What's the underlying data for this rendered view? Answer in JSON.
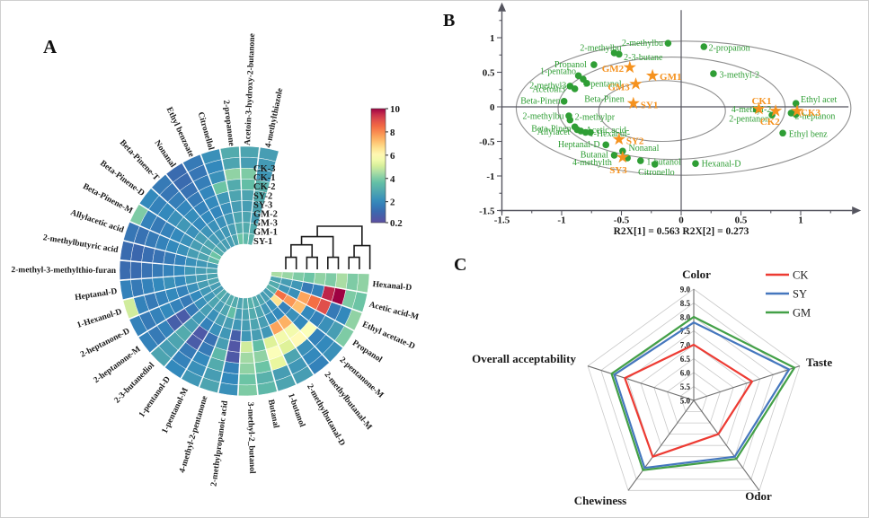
{
  "panels": {
    "a": "A",
    "b": "B",
    "c": "C"
  },
  "chart_data": [
    {
      "type": "heatmap",
      "id": "circular-volatile-heatmap",
      "rings_outer_to_inner": [
        "CK-3",
        "CK-1",
        "CK-2",
        "SY-2",
        "SY-3",
        "GM-2",
        "GM-3",
        "GM-1",
        "SY-1"
      ],
      "value_min": 0.2,
      "value_max": 10,
      "colorbar_ticks": [
        "10",
        "8",
        "6",
        "4",
        "2",
        "0.2"
      ],
      "colorbar_tick_values": [
        10,
        8,
        6,
        4,
        2,
        0.2
      ],
      "colormap_stops": [
        {
          "t": 0.0,
          "c": "#5e4fa2"
        },
        {
          "t": 0.09,
          "c": "#3b66ad"
        },
        {
          "t": 0.18,
          "c": "#3288bd"
        },
        {
          "t": 0.28,
          "c": "#52a9ae"
        },
        {
          "t": 0.36,
          "c": "#66c2a5"
        },
        {
          "t": 0.44,
          "c": "#abdda4"
        },
        {
          "t": 0.52,
          "c": "#e6f598"
        },
        {
          "t": 0.58,
          "c": "#ffffbf"
        },
        {
          "t": 0.66,
          "c": "#fee08b"
        },
        {
          "t": 0.74,
          "c": "#fdae61"
        },
        {
          "t": 0.84,
          "c": "#f46d43"
        },
        {
          "t": 0.93,
          "c": "#d53e4f"
        },
        {
          "t": 1.0,
          "c": "#9e0142"
        }
      ],
      "sectors": [
        {
          "label": "Hexanal-D",
          "values": [
            4.2,
            4.0,
            4.5,
            4.0,
            4.2,
            3.8,
            4.0,
            4.3,
            4.5
          ]
        },
        {
          "label": "Acetic acid-M",
          "values": [
            3.8,
            4.0,
            10,
            9.6,
            1.8,
            1.6,
            2.4,
            2.6,
            2.8
          ]
        },
        {
          "label": "Ethyl acetate-D",
          "values": [
            4.2,
            2.0,
            1.6,
            9.0,
            8.4,
            7.6,
            2.2,
            2.4,
            3.0
          ]
        },
        {
          "label": "Propanol",
          "values": [
            4.0,
            2.6,
            2.2,
            1.8,
            2.0,
            7.2,
            7.8,
            8.4,
            3.2
          ]
        },
        {
          "label": "2-pentanone-M",
          "values": [
            2.2,
            2.0,
            1.8,
            5.8,
            2.0,
            2.2,
            1.8,
            6.6,
            2.6
          ]
        },
        {
          "label": "2-methylbutanal-M",
          "values": [
            1.8,
            2.0,
            2.2,
            6.0,
            5.6,
            7.4,
            2.0,
            2.2,
            2.6
          ]
        },
        {
          "label": "2-methylbutanal-D",
          "values": [
            2.6,
            2.4,
            2.8,
            5.2,
            5.6,
            7.6,
            2.2,
            2.4,
            2.8
          ]
        },
        {
          "label": "1-butanol",
          "values": [
            2.8,
            2.6,
            5.4,
            5.8,
            5.2,
            2.4,
            2.6,
            2.8,
            3.0
          ]
        },
        {
          "label": "Butanal",
          "values": [
            3.4,
            3.2,
            3.8,
            4.2,
            3.6,
            2.6,
            2.8,
            3.0,
            3.2
          ]
        },
        {
          "label": "3-methyl-2_butanol",
          "values": [
            4.0,
            3.8,
            4.2,
            4.4,
            5.0,
            2.4,
            2.6,
            2.8,
            3.0
          ]
        },
        {
          "label": "2-methylpropanoic acid",
          "values": [
            2.2,
            2.0,
            1.8,
            0.6,
            0.5,
            0.8,
            2.4,
            2.6,
            2.8
          ]
        },
        {
          "label": "4-methyl-2-pentanone",
          "values": [
            2.8,
            2.6,
            3.0,
            3.4,
            2.6,
            2.4,
            2.6,
            3.6,
            3.0
          ]
        },
        {
          "label": "1-pentanol-M",
          "values": [
            2.4,
            2.2,
            2.0,
            1.6,
            1.4,
            2.2,
            2.6,
            2.8,
            3.0
          ]
        },
        {
          "label": "1-pentanol-D",
          "values": [
            2.0,
            1.8,
            1.6,
            0.7,
            0.6,
            1.8,
            2.2,
            2.6,
            2.8
          ]
        },
        {
          "label": "2-3-butanediol",
          "values": [
            2.8,
            2.6,
            2.8,
            3.0,
            2.6,
            2.4,
            2.6,
            2.8,
            3.0
          ]
        },
        {
          "label": "2-heptanone-M",
          "values": [
            1.8,
            1.6,
            1.8,
            0.8,
            0.7,
            1.6,
            2.2,
            2.4,
            2.6
          ]
        },
        {
          "label": "2-heptanone-D",
          "values": [
            1.8,
            1.6,
            1.8,
            2.0,
            1.8,
            1.6,
            2.0,
            2.4,
            2.6
          ]
        },
        {
          "label": "1-Hexanol-D",
          "values": [
            5.0,
            1.8,
            1.6,
            1.8,
            2.0,
            1.8,
            2.2,
            2.6,
            2.8
          ]
        },
        {
          "label": "Heptanal-D",
          "values": [
            1.8,
            1.6,
            1.8,
            2.0,
            2.2,
            2.0,
            2.4,
            2.6,
            2.8
          ]
        },
        {
          "label": "2-methyl-3-methylthio-furan",
          "values": [
            1.2,
            1.2,
            1.4,
            1.6,
            1.8,
            2.0,
            2.4,
            2.6,
            2.8
          ]
        },
        {
          "label": "2-methylbutyric acid",
          "values": [
            1.2,
            1.1,
            1.3,
            1.4,
            1.6,
            1.8,
            2.2,
            2.4,
            2.6
          ]
        },
        {
          "label": "Allylacetic acid",
          "values": [
            1.5,
            1.4,
            1.6,
            1.8,
            2.0,
            2.2,
            2.6,
            2.8,
            3.4
          ]
        },
        {
          "label": "Beta-Pinene-M",
          "values": [
            4.0,
            1.8,
            1.6,
            1.8,
            2.0,
            2.2,
            2.6,
            2.8,
            3.8
          ]
        },
        {
          "label": "Beta-Pinene-D",
          "values": [
            2.0,
            1.8,
            2.0,
            2.2,
            2.4,
            2.2,
            2.6,
            2.8,
            3.0
          ]
        },
        {
          "label": "Beta-Pinene-T",
          "values": [
            1.6,
            1.5,
            1.7,
            1.9,
            2.1,
            2.0,
            2.3,
            2.5,
            2.7
          ]
        },
        {
          "label": "Nonanal",
          "values": [
            1.2,
            1.2,
            1.4,
            1.6,
            1.8,
            2.0,
            2.2,
            2.4,
            2.6
          ]
        },
        {
          "label": "Ethyl benzoate",
          "values": [
            1.6,
            1.5,
            1.7,
            1.9,
            2.0,
            1.9,
            2.2,
            2.4,
            2.6
          ]
        },
        {
          "label": "Citronellol",
          "values": [
            2.2,
            2.0,
            2.2,
            3.8,
            2.4,
            2.2,
            2.4,
            2.6,
            2.8
          ]
        },
        {
          "label": "2-propanone",
          "values": [
            3.0,
            2.8,
            4.2,
            3.0,
            2.8,
            2.6,
            2.8,
            3.0,
            3.8
          ]
        },
        {
          "label": "Acetoin-3-hydroxy-2-butanone",
          "values": [
            2.8,
            2.6,
            4.0,
            3.6,
            2.8,
            2.6,
            2.8,
            3.0,
            3.4
          ]
        },
        {
          "label": "4-methylthiazole",
          "values": [
            2.6,
            2.5,
            2.4,
            3.2,
            3.0,
            2.8,
            2.6,
            3.0,
            3.2
          ]
        }
      ],
      "dendrogram": {
        "leaves": 9,
        "merges": [
          [
            "L0",
            "L1",
            0.28
          ],
          [
            "L2",
            "L3",
            0.28
          ],
          [
            "M0",
            "M1",
            0.57
          ],
          [
            "L4",
            "L5",
            0.28
          ],
          [
            "M2",
            "M3",
            0.76
          ],
          [
            "L6",
            "L7",
            0.28
          ],
          [
            "M5",
            "L8",
            0.55
          ],
          [
            "M4",
            "M6",
            1.0
          ]
        ]
      }
    },
    {
      "type": "scatter",
      "id": "pls-biplot",
      "xlabel": "R2X[1] = 0.563 R2X[2] = 0.273",
      "xticks": [
        "-1.5",
        "-1",
        "-0.5",
        "0",
        "0.5",
        "1"
      ],
      "yticks": [
        "1",
        "0.5",
        "0",
        "-0.5",
        "-1",
        "-1.5"
      ],
      "xlim": [
        -1.5,
        1.45
      ],
      "ylim": [
        -1.5,
        1.45
      ],
      "loading_color": "#2f9e35",
      "score_color": "#f5921f",
      "ellipses": [
        {
          "cx": 0.02,
          "cy": -0.02,
          "rx": 1.4,
          "ry": 0.97
        },
        {
          "cx": -0.08,
          "cy": -0.02,
          "rx": 0.95,
          "ry": 0.74
        },
        {
          "cx": -0.16,
          "cy": -0.06,
          "rx": 0.53,
          "ry": 0.44
        }
      ],
      "loadings": [
        {
          "t": "2-methylbu",
          "a": "end",
          "lx": -0.5,
          "ly": 0.86,
          "dots": [
            [
              -0.56,
              0.78
            ],
            [
              -0.52,
              0.76
            ]
          ]
        },
        {
          "t": "2-3-butane",
          "a": "start",
          "lx": -0.48,
          "ly": 0.72,
          "dots": []
        },
        {
          "t": "2-methylbu",
          "a": "end",
          "lx": -0.15,
          "ly": 0.93,
          "dots": [
            [
              -0.11,
              0.92
            ]
          ]
        },
        {
          "t": "2-propanon",
          "a": "start",
          "lx": 0.23,
          "ly": 0.86,
          "dots": [
            [
              0.19,
              0.87
            ]
          ]
        },
        {
          "t": "Propanol",
          "a": "end",
          "lx": -0.79,
          "ly": 0.62,
          "dots": [
            [
              -0.73,
              0.61
            ]
          ]
        },
        {
          "t": "1-pentano",
          "a": "end",
          "lx": -0.88,
          "ly": 0.52,
          "dots": [
            [
              -0.86,
              0.45
            ],
            [
              -0.82,
              0.4
            ]
          ]
        },
        {
          "t": "1-pentanol",
          "a": "start",
          "lx": -0.82,
          "ly": 0.34,
          "dots": [
            [
              -0.79,
              0.34
            ]
          ]
        },
        {
          "t": "2-methyl3",
          "a": "end",
          "lx": -0.96,
          "ly": 0.31,
          "dots": [
            [
              -0.93,
              0.3
            ]
          ]
        },
        {
          "t": "Acetoin3",
          "a": "end",
          "lx": -0.97,
          "ly": 0.26,
          "dots": [
            [
              -0.89,
              0.26
            ]
          ]
        },
        {
          "t": "Beta-Pinen",
          "a": "end",
          "lx": -1.01,
          "ly": 0.09,
          "dots": [
            [
              -0.98,
              0.08
            ]
          ]
        },
        {
          "t": "Beta-Pinen",
          "a": "start",
          "lx": -0.81,
          "ly": 0.12,
          "dots": []
        },
        {
          "t": "2-methylbu",
          "a": "end",
          "lx": -0.98,
          "ly": -0.13,
          "dots": [
            [
              -0.94,
              -0.13
            ]
          ]
        },
        {
          "t": "2-methylpr",
          "a": "start",
          "lx": -0.89,
          "ly": -0.14,
          "dots": [
            [
              -0.93,
              -0.19
            ]
          ]
        },
        {
          "t": "Beta-Pinen",
          "a": "end",
          "lx": -0.92,
          "ly": -0.31,
          "dots": [
            [
              -0.89,
              -0.29
            ],
            [
              -0.87,
              -0.33
            ]
          ]
        },
        {
          "t": "Allylacet",
          "a": "end",
          "lx": -0.93,
          "ly": -0.36,
          "dots": [
            [
              -0.84,
              -0.35
            ]
          ]
        },
        {
          "t": "Acetic acid-",
          "a": "start",
          "lx": -0.8,
          "ly": -0.33,
          "dots": [
            [
              -0.8,
              -0.37
            ]
          ]
        },
        {
          "t": "1-Hexanol-",
          "a": "start",
          "lx": -0.77,
          "ly": -0.38,
          "dots": [
            [
              -0.76,
              -0.37
            ]
          ]
        },
        {
          "t": "Heptanal-D",
          "a": "end",
          "lx": -0.68,
          "ly": -0.54,
          "dots": [
            [
              -0.63,
              -0.55
            ]
          ]
        },
        {
          "t": "Nonanal",
          "a": "start",
          "lx": -0.44,
          "ly": -0.59,
          "dots": [
            [
              -0.49,
              -0.64
            ]
          ]
        },
        {
          "t": "Butanal",
          "a": "end",
          "lx": -0.61,
          "ly": -0.69,
          "dots": [
            [
              -0.56,
              -0.7
            ]
          ]
        },
        {
          "t": "4-methylth",
          "a": "end",
          "lx": -0.58,
          "ly": -0.8,
          "dots": [
            [
              -0.45,
              -0.74
            ]
          ]
        },
        {
          "t": "1-butanol",
          "a": "start",
          "lx": -0.29,
          "ly": -0.79,
          "dots": [
            [
              -0.34,
              -0.78
            ]
          ]
        },
        {
          "t": "Citronello",
          "a": "start",
          "lx": -0.36,
          "ly": -0.94,
          "dots": [
            [
              -0.22,
              -0.83
            ]
          ]
        },
        {
          "t": "Hexanal-D",
          "a": "start",
          "lx": 0.17,
          "ly": -0.82,
          "dots": [
            [
              0.12,
              -0.82
            ]
          ]
        },
        {
          "t": "3-methyl-2",
          "a": "start",
          "lx": 0.32,
          "ly": 0.47,
          "dots": [
            [
              0.27,
              0.48
            ]
          ]
        },
        {
          "t": "Ethyl acet",
          "a": "start",
          "lx": 1.0,
          "ly": 0.11,
          "dots": [
            [
              0.96,
              0.05
            ]
          ]
        },
        {
          "t": "4-methyl-2",
          "a": "start",
          "lx": 0.42,
          "ly": -0.03,
          "dots": [
            [
              0.63,
              -0.04
            ]
          ]
        },
        {
          "t": "2-pentanon",
          "a": "start",
          "lx": 0.4,
          "ly": -0.17,
          "dots": [
            [
              0.76,
              -0.12
            ]
          ]
        },
        {
          "t": "2-heptanon",
          "a": "start",
          "lx": 0.95,
          "ly": -0.13,
          "dots": [
            [
              0.92,
              -0.09
            ],
            [
              0.96,
              -0.11
            ]
          ]
        },
        {
          "t": "Ethyl benz",
          "a": "start",
          "lx": 0.9,
          "ly": -0.39,
          "dots": [
            [
              0.85,
              -0.38
            ]
          ]
        }
      ],
      "scores": [
        {
          "t": "GM2",
          "x": -0.43,
          "y": 0.57,
          "lx": -0.48,
          "ly": 0.56,
          "a": "end"
        },
        {
          "t": "GM1",
          "x": -0.24,
          "y": 0.45,
          "lx": -0.18,
          "ly": 0.44,
          "a": "start"
        },
        {
          "t": "GM3",
          "x": -0.38,
          "y": 0.33,
          "lx": -0.43,
          "ly": 0.29,
          "a": "end"
        },
        {
          "t": "SY1",
          "x": -0.4,
          "y": 0.05,
          "lx": -0.34,
          "ly": 0.03,
          "a": "start"
        },
        {
          "t": "SY2",
          "x": -0.52,
          "y": -0.47,
          "lx": -0.46,
          "ly": -0.49,
          "a": "start"
        },
        {
          "t": "SY3",
          "x": -0.49,
          "y": -0.73,
          "lx": -0.6,
          "ly": -0.91,
          "a": "start"
        },
        {
          "t": "CK1",
          "x": 0.65,
          "y": -0.03,
          "lx": 0.59,
          "ly": 0.09,
          "a": "start"
        },
        {
          "t": "CK2",
          "x": 0.79,
          "y": -0.06,
          "lx": 0.66,
          "ly": -0.21,
          "a": "start"
        },
        {
          "t": "CK3",
          "x": 0.97,
          "y": -0.06,
          "lx": 1.0,
          "ly": -0.08,
          "a": "start"
        }
      ]
    },
    {
      "type": "radar",
      "id": "sensory-radar",
      "axes": [
        "Color",
        "Taste",
        "Odor",
        "Chewiness",
        "Overall acceptability"
      ],
      "rmin": 5.0,
      "rmax": 9.0,
      "rstep": 0.5,
      "tick_labels": [
        "9.0",
        "8.5",
        "8.0",
        "7.5",
        "7.0",
        "6.5",
        "6.0",
        "5.5",
        "5.0"
      ],
      "legend_position": "top-right",
      "series": [
        {
          "name": "CK",
          "color": "#ed3b33",
          "values": [
            7.0,
            7.2,
            6.5,
            7.5,
            7.6
          ]
        },
        {
          "name": "SY",
          "color": "#4577be",
          "values": [
            7.8,
            8.6,
            7.5,
            8.0,
            8.0
          ]
        },
        {
          "name": "GM",
          "color": "#43a047",
          "values": [
            8.0,
            8.8,
            7.6,
            8.1,
            8.1
          ]
        }
      ]
    }
  ]
}
